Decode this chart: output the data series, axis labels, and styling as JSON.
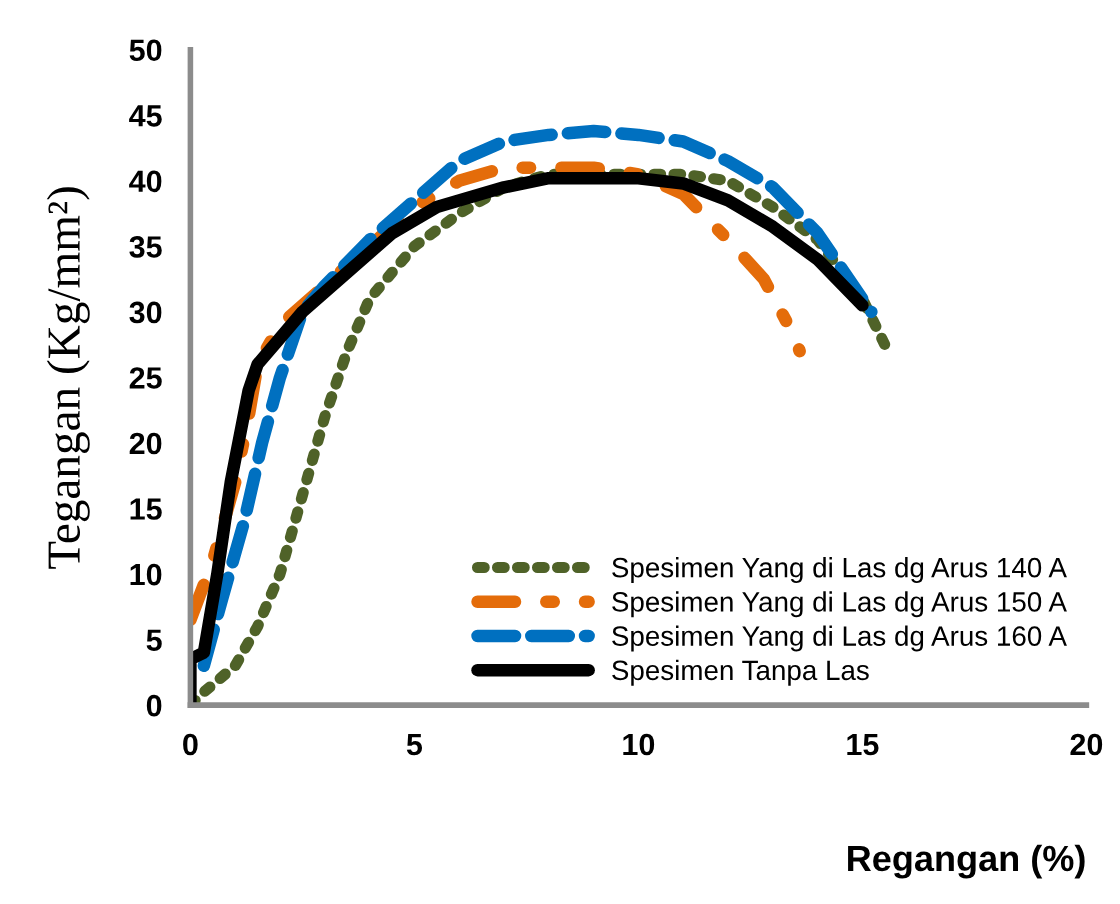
{
  "chart_data": {
    "type": "line",
    "xlabel": "Regangan (%)",
    "ylabel": "Tegangan (Kg/mm²)",
    "xlim": [
      0,
      20
    ],
    "ylim": [
      0,
      50
    ],
    "xticks": [
      0,
      5,
      10,
      15,
      20
    ],
    "yticks": [
      0,
      5,
      10,
      15,
      20,
      25,
      30,
      35,
      40,
      45,
      50
    ],
    "grid": false,
    "legend": "bottom right",
    "marker": "none",
    "series": [
      {
        "name": "Spesimen Yang di Las dg Arus 140 A",
        "color": "#4f6228",
        "line_style": "dotted",
        "x": [
          0,
          0.3,
          1,
          1.5,
          2,
          2.5,
          3,
          3.5,
          4,
          5,
          6,
          7,
          8,
          10,
          11,
          12,
          13,
          14,
          15,
          15.5
        ],
        "values": [
          0,
          1,
          3,
          6,
          10,
          16,
          22,
          27,
          31,
          35,
          37.5,
          39.5,
          40.5,
          40.5,
          40.5,
          40,
          38,
          35.5,
          31,
          27.5
        ]
      },
      {
        "name": "Spesimen Yang di Las dg Arus 150 A",
        "color": "#e46c0a",
        "line_style": "dashdot",
        "x": [
          0,
          0.5,
          1,
          1.3,
          1.5,
          2,
          3,
          4,
          5,
          6,
          7,
          8,
          9,
          10,
          11,
          12,
          12.8,
          13.5,
          13.6
        ],
        "values": [
          6.5,
          11,
          17,
          22,
          26,
          29,
          32,
          35,
          38,
          40,
          41,
          41,
          41,
          40.5,
          39,
          35.5,
          32.5,
          28,
          27
        ]
      },
      {
        "name": "Spesimen Yang di Las dg Arus 160 A",
        "color": "#0070c0",
        "line_style": "dashed",
        "x": [
          0.3,
          0.7,
          1.2,
          1.6,
          2,
          2.5,
          3,
          4,
          5,
          6,
          7,
          8,
          9,
          10,
          11,
          12,
          13,
          14,
          14.8,
          15.2
        ],
        "values": [
          3,
          8,
          14,
          20,
          25,
          30,
          32,
          35.5,
          38.5,
          41.5,
          43,
          43.5,
          43.8,
          43.5,
          43,
          41.5,
          39.5,
          36,
          32,
          30
        ]
      },
      {
        "name": "Spesimen Tanpa Las",
        "color": "#000000",
        "line_style": "solid",
        "x": [
          0,
          0,
          0.3,
          0.6,
          0.9,
          1.3,
          1.5,
          2,
          2.5,
          3.5,
          4.5,
          5.5,
          7,
          8,
          10,
          11,
          12,
          13,
          14,
          15
        ],
        "values": [
          0,
          3.5,
          4,
          10,
          17,
          24,
          26,
          28,
          30,
          33,
          36,
          38,
          39.5,
          40.2,
          40.2,
          39.8,
          38.5,
          36.5,
          34,
          30.5
        ]
      }
    ]
  }
}
